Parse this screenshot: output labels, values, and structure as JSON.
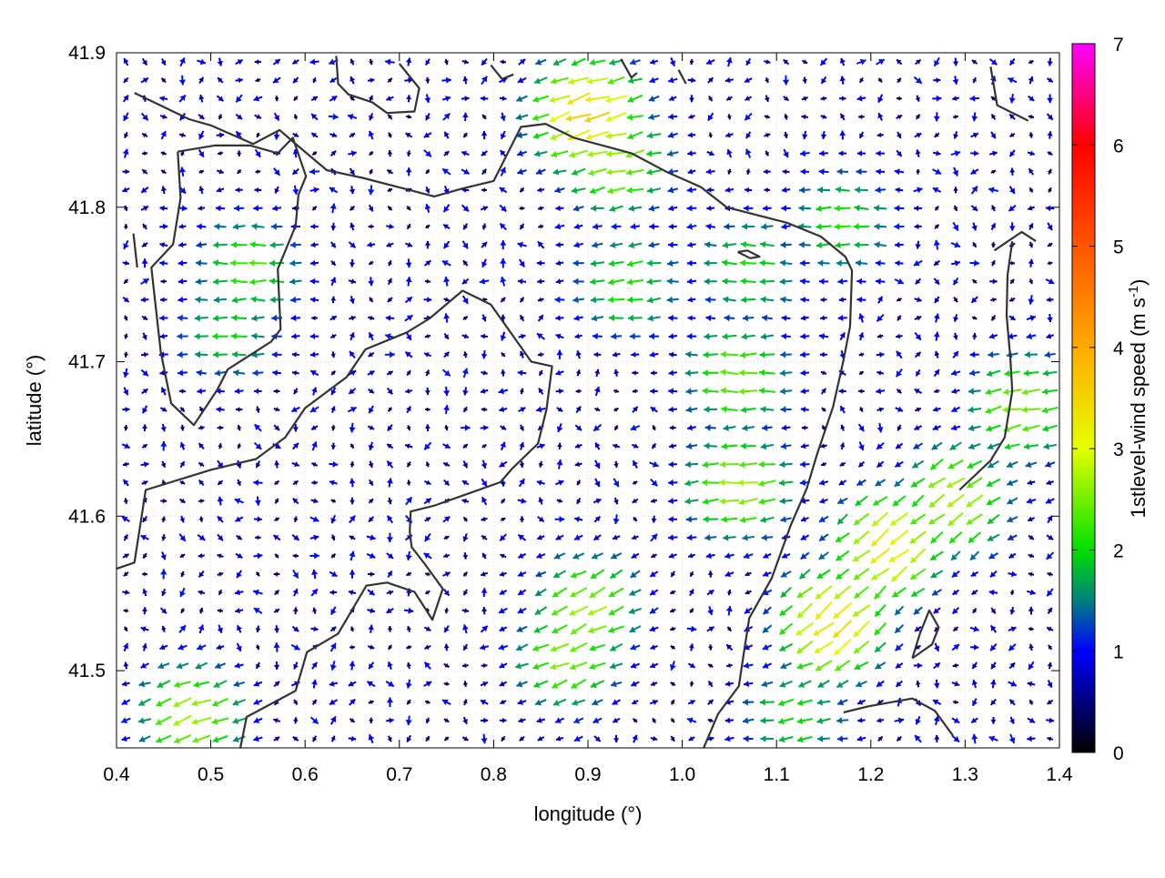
{
  "chart_data": {
    "type": "vector_field",
    "xlabel": "longitude (°)",
    "ylabel": "latitude (°)",
    "colorbar_label": "1stlevel-wind speed (m s",
    "colorbar_label_sup": "-1",
    "colorbar_label_end": ")",
    "xlim": [
      0.4,
      1.4
    ],
    "ylim": [
      41.45,
      41.9
    ],
    "x_ticks": [
      0.4,
      0.5,
      0.6,
      0.7,
      0.8,
      0.9,
      1.0,
      1.1,
      1.2,
      1.3,
      1.4
    ],
    "x_tick_labels": [
      "0.4",
      "0.5",
      "0.6",
      "0.7",
      "0.8",
      "0.9",
      "1.0",
      "1.1",
      "1.2",
      "1.3",
      "1.4"
    ],
    "y_ticks": [
      41.5,
      41.6,
      41.7,
      41.8,
      41.9
    ],
    "y_tick_labels": [
      "41.5",
      "41.6",
      "41.7",
      "41.8",
      "41.9"
    ],
    "colorbar_range": [
      0,
      7
    ],
    "colorbar_ticks": [
      0,
      1,
      2,
      3,
      4,
      5,
      6,
      7
    ],
    "colorbar_tick_labels": [
      "0",
      "1",
      "2",
      "3",
      "4",
      "5",
      "6",
      "7"
    ],
    "colormap": [
      {
        "value": 0,
        "color": "#000000"
      },
      {
        "value": 1,
        "color": "#0000ff"
      },
      {
        "value": 1.5,
        "color": "#008080"
      },
      {
        "value": 2,
        "color": "#00e000"
      },
      {
        "value": 3,
        "color": "#e6ff00"
      },
      {
        "value": 4,
        "color": "#ffaa00"
      },
      {
        "value": 5,
        "color": "#ff5500"
      },
      {
        "value": 6,
        "color": "#ff0000"
      },
      {
        "value": 7,
        "color": "#ff00ff"
      }
    ],
    "grid": true,
    "vector_grid": {
      "nx": 50,
      "ny": 38
    },
    "wind_regions": [
      {
        "lon": 0.94,
        "lat": 41.75,
        "speed": 2.1,
        "dir_deg": 185
      },
      {
        "lon": 1.07,
        "lat": 41.76,
        "speed": 2.0,
        "dir_deg": 180
      },
      {
        "lon": 1.17,
        "lat": 41.79,
        "speed": 2.0,
        "dir_deg": 180
      },
      {
        "lon": 1.06,
        "lat": 41.69,
        "speed": 2.4,
        "dir_deg": 180
      },
      {
        "lon": 1.06,
        "lat": 41.62,
        "speed": 2.6,
        "dir_deg": 185
      },
      {
        "lon": 0.9,
        "lat": 41.86,
        "speed": 3.5,
        "dir_deg": 200
      },
      {
        "lon": 0.93,
        "lat": 41.83,
        "speed": 2.6,
        "dir_deg": 190
      },
      {
        "lon": 0.54,
        "lat": 41.76,
        "speed": 2.2,
        "dir_deg": 180
      },
      {
        "lon": 0.52,
        "lat": 41.72,
        "speed": 1.9,
        "dir_deg": 180
      },
      {
        "lon": 1.16,
        "lat": 41.53,
        "speed": 3.3,
        "dir_deg": 225
      },
      {
        "lon": 1.22,
        "lat": 41.58,
        "speed": 3.2,
        "dir_deg": 220
      },
      {
        "lon": 1.29,
        "lat": 41.61,
        "speed": 2.7,
        "dir_deg": 215
      },
      {
        "lon": 0.9,
        "lat": 41.54,
        "speed": 2.6,
        "dir_deg": 210
      },
      {
        "lon": 0.88,
        "lat": 41.51,
        "speed": 2.5,
        "dir_deg": 200
      },
      {
        "lon": 1.36,
        "lat": 41.67,
        "speed": 2.5,
        "dir_deg": 190
      },
      {
        "lon": 0.48,
        "lat": 41.47,
        "speed": 2.6,
        "dir_deg": 200
      },
      {
        "lon": 1.12,
        "lat": 41.47,
        "speed": 2.0,
        "dir_deg": 185
      }
    ],
    "contour_lines": [
      [
        [
          0.4,
          41.566
        ],
        [
          0.419,
          41.57
        ],
        [
          0.431,
          41.617
        ],
        [
          0.5,
          41.63
        ],
        [
          0.548,
          41.637
        ],
        [
          0.579,
          41.651
        ],
        [
          0.6,
          41.67
        ],
        [
          0.644,
          41.69
        ],
        [
          0.664,
          41.708
        ],
        [
          0.708,
          41.719
        ],
        [
          0.732,
          41.728
        ],
        [
          0.767,
          41.746
        ],
        [
          0.797,
          41.737
        ],
        [
          0.84,
          41.7
        ],
        [
          0.862,
          41.697
        ],
        [
          0.856,
          41.669
        ],
        [
          0.847,
          41.647
        ],
        [
          0.82,
          41.631
        ],
        [
          0.807,
          41.622
        ],
        [
          0.738,
          41.607
        ],
        [
          0.712,
          41.603
        ],
        [
          0.711,
          41.59
        ],
        [
          0.713,
          41.58
        ],
        [
          0.727,
          41.569
        ],
        [
          0.746,
          41.553
        ],
        [
          0.735,
          41.533
        ],
        [
          0.716,
          41.551
        ],
        [
          0.687,
          41.557
        ],
        [
          0.665,
          41.555
        ],
        [
          0.635,
          41.524
        ],
        [
          0.602,
          41.512
        ],
        [
          0.59,
          41.487
        ],
        [
          0.538,
          41.47
        ],
        [
          0.531,
          41.449
        ]
      ],
      [
        [
          0.419,
          41.874
        ],
        [
          0.477,
          41.857
        ],
        [
          0.5,
          41.853
        ],
        [
          0.545,
          41.841
        ],
        [
          0.573,
          41.85
        ],
        [
          0.588,
          41.842
        ],
        [
          0.623,
          41.824
        ],
        [
          0.661,
          41.819
        ],
        [
          0.699,
          41.813
        ],
        [
          0.737,
          41.807
        ],
        [
          0.766,
          41.812
        ],
        [
          0.8,
          41.817
        ],
        [
          0.829,
          41.852
        ],
        [
          0.855,
          41.854
        ],
        [
          0.885,
          41.845
        ],
        [
          0.946,
          41.835
        ],
        [
          0.983,
          41.823
        ],
        [
          1.02,
          41.813
        ],
        [
          1.047,
          41.8
        ],
        [
          1.111,
          41.79
        ],
        [
          1.147,
          41.781
        ],
        [
          1.173,
          41.768
        ],
        [
          1.18,
          41.759
        ],
        [
          1.178,
          41.723
        ],
        [
          1.171,
          41.701
        ],
        [
          1.16,
          41.671
        ],
        [
          1.143,
          41.64
        ],
        [
          1.132,
          41.618
        ],
        [
          1.115,
          41.594
        ],
        [
          1.095,
          41.56
        ],
        [
          1.071,
          41.534
        ],
        [
          1.065,
          41.51
        ],
        [
          1.06,
          41.49
        ],
        [
          1.038,
          41.472
        ],
        [
          1.022,
          41.449
        ]
      ],
      [
        [
          0.418,
          41.783
        ],
        [
          0.422,
          41.761
        ]
      ],
      [
        [
          0.465,
          41.836
        ],
        [
          0.468,
          41.806
        ],
        [
          0.46,
          41.776
        ],
        [
          0.437,
          41.761
        ],
        [
          0.447,
          41.706
        ],
        [
          0.458,
          41.673
        ],
        [
          0.482,
          41.659
        ],
        [
          0.507,
          41.682
        ],
        [
          0.518,
          41.695
        ],
        [
          0.564,
          41.713
        ],
        [
          0.574,
          41.721
        ],
        [
          0.571,
          41.76
        ],
        [
          0.59,
          41.788
        ],
        [
          0.593,
          41.808
        ],
        [
          0.601,
          41.82
        ],
        [
          0.587,
          41.845
        ],
        [
          0.571,
          41.835
        ],
        [
          0.542,
          41.84
        ],
        [
          0.504,
          41.84
        ],
        [
          0.465,
          41.836
        ]
      ],
      [
        [
          0.633,
          41.898
        ],
        [
          0.635,
          41.88
        ],
        [
          0.646,
          41.873
        ],
        [
          0.671,
          41.868
        ],
        [
          0.687,
          41.861
        ],
        [
          0.716,
          41.862
        ],
        [
          0.721,
          41.877
        ],
        [
          0.7,
          41.893
        ]
      ],
      [
        [
          0.797,
          41.892
        ],
        [
          0.809,
          41.883
        ],
        [
          0.821,
          41.886
        ]
      ],
      [
        [
          0.935,
          41.896
        ],
        [
          0.946,
          41.884
        ],
        [
          0.952,
          41.887
        ]
      ],
      [
        [
          0.996,
          41.889
        ],
        [
          1.004,
          41.88
        ]
      ],
      [
        [
          1.059,
          41.771
        ],
        [
          1.072,
          41.767
        ],
        [
          1.082,
          41.768
        ],
        [
          1.069,
          41.772
        ],
        [
          1.059,
          41.771
        ]
      ],
      [
        [
          1.327,
          41.891
        ],
        [
          1.334,
          41.866
        ],
        [
          1.367,
          41.856
        ]
      ],
      [
        [
          1.331,
          41.772
        ],
        [
          1.36,
          41.784
        ],
        [
          1.375,
          41.778
        ]
      ],
      [
        [
          1.294,
          41.617
        ],
        [
          1.327,
          41.636
        ],
        [
          1.342,
          41.651
        ],
        [
          1.35,
          41.681
        ],
        [
          1.348,
          41.702
        ],
        [
          1.344,
          41.73
        ],
        [
          1.345,
          41.756
        ],
        [
          1.35,
          41.778
        ]
      ],
      [
        [
          1.244,
          41.508
        ],
        [
          1.265,
          41.517
        ],
        [
          1.272,
          41.528
        ],
        [
          1.262,
          41.539
        ],
        [
          1.252,
          41.524
        ],
        [
          1.244,
          41.508
        ]
      ],
      [
        [
          1.171,
          41.473
        ],
        [
          1.198,
          41.477
        ],
        [
          1.244,
          41.482
        ],
        [
          1.268,
          41.474
        ],
        [
          1.287,
          41.458
        ]
      ]
    ]
  }
}
